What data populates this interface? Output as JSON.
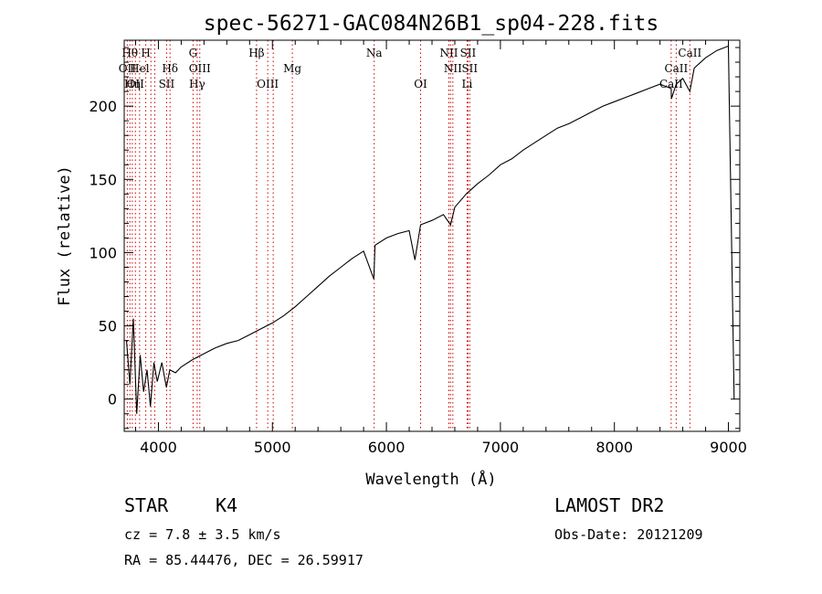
{
  "chart_data": {
    "type": "line",
    "title": "spec-56271-GAC084N26B1_sp04-228.fits",
    "xlabel": "Wavelength (Å)",
    "ylabel": "Flux (relative)",
    "xlim": [
      3700,
      9100
    ],
    "ylim": [
      -22,
      245
    ],
    "xticks": [
      4000,
      5000,
      6000,
      7000,
      8000,
      9000
    ],
    "yticks": [
      0,
      50,
      100,
      150,
      200
    ],
    "grid": false,
    "legend": "none",
    "line_color": "#000000",
    "marker_color": "#cc0000",
    "series": [
      {
        "x": [
          3720,
          3750,
          3780,
          3810,
          3840,
          3870,
          3900,
          3930,
          3960,
          3990,
          4030,
          4070,
          4100,
          4150,
          4200,
          4300,
          4400,
          4500,
          4600,
          4700,
          4800,
          4900,
          5000,
          5100,
          5200,
          5300,
          5400,
          5500,
          5600,
          5700,
          5800,
          5890,
          5900,
          6000,
          6100,
          6200,
          6250,
          6300,
          6400,
          6500,
          6563,
          6600,
          6700,
          6800,
          6900,
          7000,
          7100,
          7200,
          7300,
          7400,
          7500,
          7600,
          7700,
          7800,
          7900,
          8000,
          8100,
          8200,
          8300,
          8400,
          8498,
          8500,
          8542,
          8600,
          8662,
          8700,
          8800,
          8900,
          9000,
          9050
        ],
        "y": [
          40,
          10,
          55,
          -10,
          30,
          5,
          20,
          -5,
          25,
          12,
          25,
          8,
          20,
          18,
          22,
          27,
          31,
          35,
          38,
          40,
          44,
          48,
          52,
          57,
          63,
          70,
          77,
          84,
          90,
          96,
          101,
          82,
          105,
          110,
          113,
          115,
          95,
          119,
          122,
          126,
          119,
          131,
          140,
          147,
          153,
          160,
          164,
          170,
          175,
          180,
          185,
          188,
          192,
          196,
          200,
          203,
          206,
          209,
          212,
          215,
          212,
          205,
          215,
          219,
          210,
          226,
          233,
          238,
          241,
          0
        ]
      }
    ],
    "lines": [
      {
        "x": 3727,
        "label": "OII",
        "row": 2
      },
      {
        "x": 3750,
        "label": "Hθ",
        "row": 1
      },
      {
        "x": 3771,
        "label": "Hη",
        "row": 3
      },
      {
        "x": 3798,
        "label": "OII",
        "row": 3
      },
      {
        "x": 3835,
        "label": "Hel",
        "row": 2
      },
      {
        "x": 3889,
        "label": "H",
        "row": 1
      },
      {
        "x": 3934,
        "label": "",
        "row": 0
      },
      {
        "x": 3968,
        "label": "",
        "row": 0
      },
      {
        "x": 4072,
        "label": "SII",
        "row": 3
      },
      {
        "x": 4102,
        "label": "Hδ",
        "row": 2
      },
      {
        "x": 4304,
        "label": "G",
        "row": 1
      },
      {
        "x": 4340,
        "label": "Hγ",
        "row": 3
      },
      {
        "x": 4363,
        "label": "OIII",
        "row": 2
      },
      {
        "x": 4861,
        "label": "Hβ",
        "row": 1
      },
      {
        "x": 4959,
        "label": "OIII",
        "row": 3
      },
      {
        "x": 5007,
        "label": "",
        "row": 0
      },
      {
        "x": 5175,
        "label": "Mg",
        "row": 2
      },
      {
        "x": 5893,
        "label": "Na",
        "row": 1
      },
      {
        "x": 6300,
        "label": "OI",
        "row": 3
      },
      {
        "x": 6548,
        "label": "NII",
        "row": 1
      },
      {
        "x": 6563,
        "label": "",
        "row": 0
      },
      {
        "x": 6583,
        "label": "NII",
        "row": 2
      },
      {
        "x": 6708,
        "label": "Li",
        "row": 3
      },
      {
        "x": 6716,
        "label": "SII",
        "row": 1
      },
      {
        "x": 6731,
        "label": "SII",
        "row": 2
      },
      {
        "x": 8498,
        "label": "CaII",
        "row": 3
      },
      {
        "x": 8542,
        "label": "CaII",
        "row": 2
      },
      {
        "x": 8662,
        "label": "CaII",
        "row": 1
      }
    ]
  },
  "info": {
    "class_label": "STAR",
    "subclass": "K4",
    "survey": "LAMOST DR2",
    "cz": "cz = 7.8 ± 3.5 km/s",
    "obs_date": "Obs-Date: 20121209",
    "coords": "RA =  85.44476, DEC =  26.59917"
  }
}
